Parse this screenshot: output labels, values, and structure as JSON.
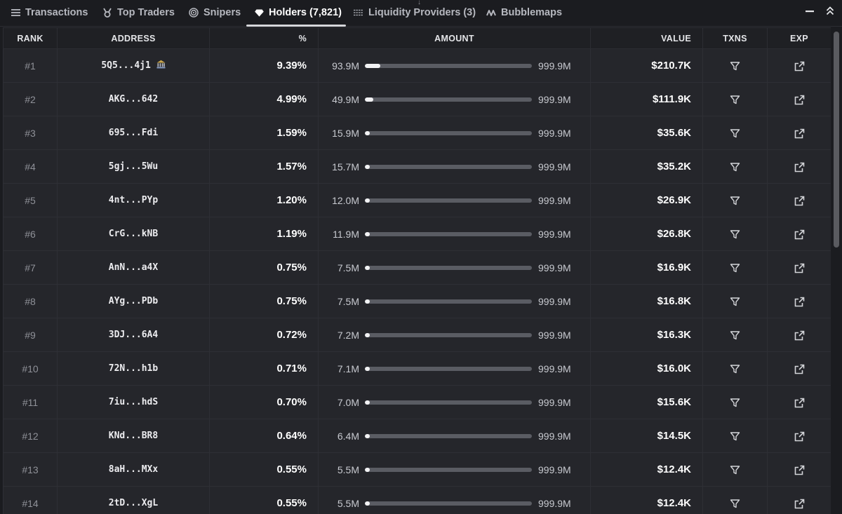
{
  "tabs": [
    {
      "label": "Transactions",
      "icon": "list-icon",
      "active": false
    },
    {
      "label": "Top Traders",
      "icon": "medal-icon",
      "active": false
    },
    {
      "label": "Snipers",
      "icon": "target-icon",
      "active": false
    },
    {
      "label": "Holders (7,821)",
      "icon": "diamond-icon",
      "active": true
    },
    {
      "label": "Liquidity Providers (3)",
      "icon": "layers-icon",
      "active": false
    },
    {
      "label": "Bubblemaps",
      "icon": "bubblemaps-icon",
      "active": false
    }
  ],
  "window_controls": {
    "minimize_icon": "minimize-icon",
    "collapse_icon": "double-chevron-up-icon"
  },
  "columns": {
    "rank": "RANK",
    "address": "ADDRESS",
    "percent": "%",
    "amount": "AMOUNT",
    "value": "VALUE",
    "txns": "TXNS",
    "exp": "EXP"
  },
  "colors": {
    "background": "#1b1c20",
    "row": "#25262b",
    "bar_track": "#5a5c63",
    "bar_fill": "#f2f2f4"
  },
  "rows": [
    {
      "rank": "#1",
      "address": "5Q5...4j1",
      "address_icon": "bank-icon",
      "percent": "9.39%",
      "amount": "93.9M",
      "share": 0.0939,
      "total": "999.9M",
      "value": "$210.7K"
    },
    {
      "rank": "#2",
      "address": "AKG...642",
      "percent": "4.99%",
      "amount": "49.9M",
      "share": 0.0499,
      "total": "999.9M",
      "value": "$111.9K"
    },
    {
      "rank": "#3",
      "address": "695...Fdi",
      "percent": "1.59%",
      "amount": "15.9M",
      "share": 0.0159,
      "total": "999.9M",
      "value": "$35.6K"
    },
    {
      "rank": "#4",
      "address": "5gj...5Wu",
      "percent": "1.57%",
      "amount": "15.7M",
      "share": 0.0157,
      "total": "999.9M",
      "value": "$35.2K"
    },
    {
      "rank": "#5",
      "address": "4nt...PYp",
      "percent": "1.20%",
      "amount": "12.0M",
      "share": 0.012,
      "total": "999.9M",
      "value": "$26.9K"
    },
    {
      "rank": "#6",
      "address": "CrG...kNB",
      "percent": "1.19%",
      "amount": "11.9M",
      "share": 0.0119,
      "total": "999.9M",
      "value": "$26.8K"
    },
    {
      "rank": "#7",
      "address": "AnN...a4X",
      "percent": "0.75%",
      "amount": "7.5M",
      "share": 0.0075,
      "total": "999.9M",
      "value": "$16.9K"
    },
    {
      "rank": "#8",
      "address": "AYg...PDb",
      "percent": "0.75%",
      "amount": "7.5M",
      "share": 0.0075,
      "total": "999.9M",
      "value": "$16.8K"
    },
    {
      "rank": "#9",
      "address": "3DJ...6A4",
      "percent": "0.72%",
      "amount": "7.2M",
      "share": 0.0072,
      "total": "999.9M",
      "value": "$16.3K"
    },
    {
      "rank": "#10",
      "address": "72N...h1b",
      "percent": "0.71%",
      "amount": "7.1M",
      "share": 0.0071,
      "total": "999.9M",
      "value": "$16.0K"
    },
    {
      "rank": "#11",
      "address": "7iu...hdS",
      "percent": "0.70%",
      "amount": "7.0M",
      "share": 0.007,
      "total": "999.9M",
      "value": "$15.6K"
    },
    {
      "rank": "#12",
      "address": "KNd...BR8",
      "percent": "0.64%",
      "amount": "6.4M",
      "share": 0.0064,
      "total": "999.9M",
      "value": "$14.5K"
    },
    {
      "rank": "#13",
      "address": "8aH...MXx",
      "percent": "0.55%",
      "amount": "5.5M",
      "share": 0.0055,
      "total": "999.9M",
      "value": "$12.4K"
    },
    {
      "rank": "#14",
      "address": "2tD...XgL",
      "percent": "0.55%",
      "amount": "5.5M",
      "share": 0.0055,
      "total": "999.9M",
      "value": "$12.4K"
    }
  ]
}
